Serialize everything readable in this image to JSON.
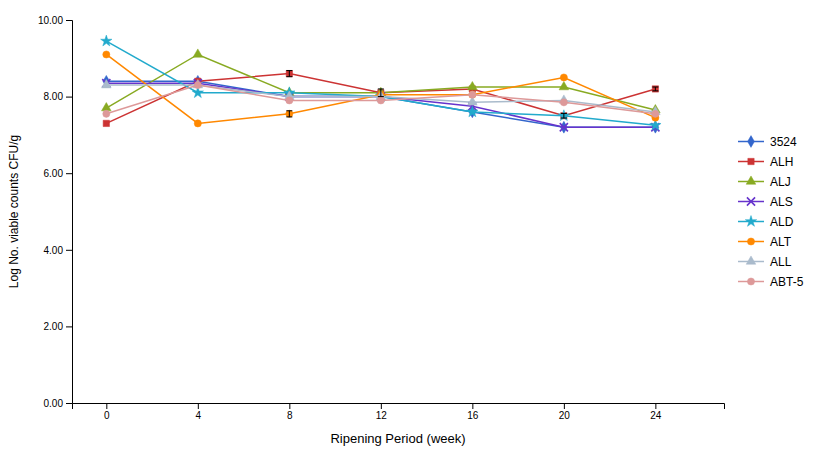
{
  "chart_data": {
    "type": "line",
    "xlabel": "Ripening Period (week)",
    "ylabel": "Log No. viable counts CFU/g",
    "x": [
      0,
      4,
      8,
      12,
      16,
      20,
      24
    ],
    "xlim": [
      -1.5,
      27
    ],
    "xticks": [
      0,
      4,
      8,
      12,
      16,
      20,
      24
    ],
    "ylim": [
      0.0,
      10.0
    ],
    "yticks": [
      {
        "value": 0,
        "label": "0.00"
      },
      {
        "value": 2,
        "label": "2.00"
      },
      {
        "value": 4,
        "label": "4.00"
      },
      {
        "value": 6,
        "label": "6.00"
      },
      {
        "value": 8,
        "label": "8.00"
      },
      {
        "value": 10,
        "label": "10.00"
      }
    ],
    "grid": false,
    "legend": "right",
    "series": [
      {
        "name": "3524",
        "color": "#3366CC",
        "marker": "diamond",
        "values": [
          8.4,
          8.4,
          8.0,
          8.0,
          7.6,
          7.2,
          7.2
        ]
      },
      {
        "name": "ALH",
        "color": "#CC3333",
        "marker": "square",
        "values": [
          7.3,
          8.4,
          8.6,
          8.1,
          8.2,
          7.5,
          8.2
        ],
        "yerr": [
          null,
          null,
          0.08,
          0.1,
          null,
          0.06,
          0.05
        ]
      },
      {
        "name": "ALJ",
        "color": "#88AA22",
        "marker": "triangle",
        "values": [
          7.7,
          9.1,
          8.1,
          8.1,
          8.25,
          8.25,
          7.65
        ]
      },
      {
        "name": "ALS",
        "color": "#6633CC",
        "marker": "x",
        "values": [
          8.35,
          8.35,
          8.0,
          8.0,
          7.75,
          7.2,
          7.2
        ]
      },
      {
        "name": "ALD",
        "color": "#22AACC",
        "marker": "star",
        "values": [
          9.45,
          8.1,
          8.1,
          8.0,
          7.6,
          7.5,
          7.25
        ]
      },
      {
        "name": "ALT",
        "color": "#FF8800",
        "marker": "circle",
        "values": [
          9.1,
          7.3,
          7.55,
          8.05,
          8.05,
          8.5,
          7.45
        ],
        "yerr": [
          null,
          null,
          0.08,
          null,
          null,
          null,
          null
        ]
      },
      {
        "name": "ALL",
        "color": "#AABBCC",
        "marker": "triangle",
        "values": [
          8.3,
          8.3,
          8.0,
          8.0,
          7.85,
          7.9,
          7.6
        ]
      },
      {
        "name": "ABT-5",
        "color": "#DD9999",
        "marker": "circle",
        "values": [
          7.55,
          8.3,
          7.9,
          7.9,
          8.05,
          7.85,
          7.55
        ]
      }
    ]
  }
}
